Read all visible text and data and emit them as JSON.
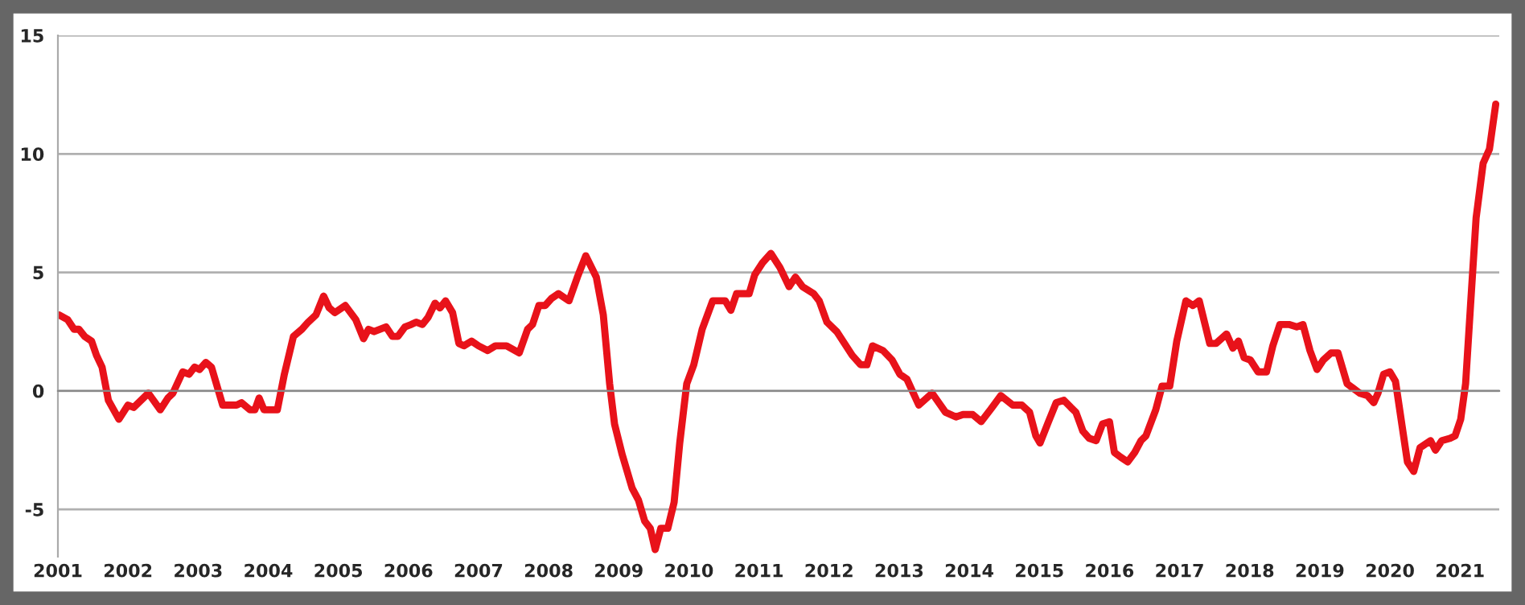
{
  "chart_data": {
    "type": "line",
    "x": [
      2001.02,
      2001.14,
      2001.23,
      2001.3,
      2001.38,
      2001.48,
      2001.55,
      2001.63,
      2001.72,
      2001.87,
      2002.0,
      2002.08,
      2002.29,
      2002.46,
      2002.57,
      2002.64,
      2002.78,
      2002.87,
      2002.95,
      2003.02,
      2003.11,
      2003.19,
      2003.35,
      2003.55,
      2003.62,
      2003.74,
      2003.81,
      2003.87,
      2003.94,
      2004.13,
      2004.23,
      2004.36,
      2004.48,
      2004.57,
      2004.68,
      2004.79,
      2004.87,
      2004.95,
      2005.1,
      2005.25,
      2005.36,
      2005.43,
      2005.51,
      2005.68,
      2005.77,
      2005.85,
      2005.95,
      2006.04,
      2006.11,
      2006.2,
      2006.28,
      2006.38,
      2006.45,
      2006.53,
      2006.63,
      2006.72,
      2006.79,
      2006.9,
      2007.0,
      2007.13,
      2007.24,
      2007.4,
      2007.58,
      2007.7,
      2007.77,
      2007.86,
      2007.95,
      2008.04,
      2008.14,
      2008.29,
      2008.41,
      2008.53,
      2008.68,
      2008.78,
      2008.87,
      2008.94,
      2009.05,
      2009.19,
      2009.28,
      2009.37,
      2009.45,
      2009.52,
      2009.6,
      2009.7,
      2009.79,
      2009.87,
      2009.97,
      2010.07,
      2010.19,
      2010.34,
      2010.43,
      2010.52,
      2010.6,
      2010.68,
      2010.86,
      2010.94,
      2011.05,
      2011.17,
      2011.3,
      2011.43,
      2011.52,
      2011.62,
      2011.78,
      2011.86,
      2011.97,
      2012.11,
      2012.22,
      2012.33,
      2012.45,
      2012.54,
      2012.62,
      2012.77,
      2012.9,
      2013.01,
      2013.11,
      2013.28,
      2013.47,
      2013.66,
      2013.81,
      2013.91,
      2014.05,
      2014.17,
      2014.3,
      2014.45,
      2014.62,
      2014.75,
      2014.86,
      2014.95,
      2015.01,
      2015.13,
      2015.24,
      2015.35,
      2015.45,
      2015.52,
      2015.62,
      2015.71,
      2015.81,
      2015.9,
      2016.0,
      2016.07,
      2016.16,
      2016.26,
      2016.36,
      2016.45,
      2016.52,
      2016.66,
      2016.75,
      2016.86,
      2016.96,
      2017.09,
      2017.19,
      2017.28,
      2017.43,
      2017.52,
      2017.67,
      2017.76,
      2017.84,
      2017.92,
      2018.01,
      2018.12,
      2018.24,
      2018.33,
      2018.43,
      2018.56,
      2018.67,
      2018.76,
      2018.86,
      2018.96,
      2019.05,
      2019.16,
      2019.26,
      2019.39,
      2019.48,
      2019.57,
      2019.68,
      2019.77,
      2019.83,
      2019.91,
      2020.0,
      2020.08,
      2020.17,
      2020.25,
      2020.34,
      2020.43,
      2020.58,
      2020.65,
      2020.74,
      2020.86,
      2020.93,
      2021.01,
      2021.08,
      2021.15,
      2021.23,
      2021.33,
      2021.42,
      2021.51
    ],
    "series": [
      {
        "color": "#e8121a",
        "values": [
          3.2,
          3.0,
          2.6,
          2.6,
          2.3,
          2.1,
          1.5,
          1.0,
          -0.4,
          -1.2,
          -0.6,
          -0.7,
          -0.1,
          -0.8,
          -0.3,
          -0.1,
          0.8,
          0.7,
          1.0,
          0.9,
          1.2,
          1.0,
          -0.6,
          -0.6,
          -0.5,
          -0.8,
          -0.8,
          -0.3,
          -0.8,
          -0.8,
          0.7,
          2.3,
          2.6,
          2.9,
          3.2,
          4.0,
          3.5,
          3.3,
          3.6,
          3.0,
          2.2,
          2.6,
          2.5,
          2.7,
          2.3,
          2.3,
          2.7,
          2.8,
          2.9,
          2.8,
          3.1,
          3.7,
          3.5,
          3.8,
          3.3,
          2.0,
          1.9,
          2.1,
          1.9,
          1.7,
          1.9,
          1.9,
          1.6,
          2.6,
          2.8,
          3.6,
          3.6,
          3.9,
          4.1,
          3.8,
          4.8,
          5.7,
          4.8,
          3.2,
          0.3,
          -1.4,
          -2.7,
          -4.1,
          -4.6,
          -5.5,
          -5.8,
          -6.7,
          -5.8,
          -5.8,
          -4.7,
          -2.2,
          0.3,
          1.1,
          2.6,
          3.8,
          3.8,
          3.8,
          3.4,
          4.1,
          4.1,
          4.9,
          5.4,
          5.8,
          5.2,
          4.4,
          4.8,
          4.4,
          4.1,
          3.8,
          2.9,
          2.5,
          2.0,
          1.5,
          1.1,
          1.1,
          1.9,
          1.7,
          1.3,
          0.7,
          0.5,
          -0.6,
          -0.1,
          -0.9,
          -1.1,
          -1.0,
          -1.0,
          -1.3,
          -0.8,
          -0.2,
          -0.6,
          -0.6,
          -0.9,
          -1.9,
          -2.2,
          -1.3,
          -0.5,
          -0.4,
          -0.7,
          -0.9,
          -1.7,
          -2.0,
          -2.1,
          -1.4,
          -1.3,
          -2.6,
          -2.8,
          -3.0,
          -2.6,
          -2.1,
          -1.9,
          -0.8,
          0.2,
          0.2,
          2.1,
          3.8,
          3.6,
          3.8,
          2.0,
          2.0,
          2.4,
          1.8,
          2.1,
          1.4,
          1.3,
          0.8,
          0.8,
          1.9,
          2.8,
          2.8,
          2.7,
          2.8,
          1.7,
          0.9,
          1.3,
          1.6,
          1.6,
          0.3,
          0.1,
          -0.1,
          -0.2,
          -0.5,
          -0.1,
          0.7,
          0.8,
          0.4,
          -1.4,
          -3.0,
          -3.4,
          -2.4,
          -2.1,
          -2.5,
          -2.1,
          -2.0,
          -1.9,
          -1.2,
          0.3,
          3.6,
          7.3,
          9.6,
          10.2,
          12.1
        ]
      }
    ],
    "xlim": [
      2001,
      2021.56
    ],
    "xticks": [
      2001,
      2002,
      2003,
      2004,
      2005,
      2006,
      2007,
      2008,
      2009,
      2010,
      2011,
      2012,
      2013,
      2014,
      2015,
      2016,
      2017,
      2018,
      2019,
      2020,
      2021
    ],
    "ylim": [
      -7,
      15
    ],
    "yticks": [
      -5,
      0,
      5,
      10,
      15
    ],
    "grid": "y",
    "line_style": "solid",
    "marker": "none"
  }
}
